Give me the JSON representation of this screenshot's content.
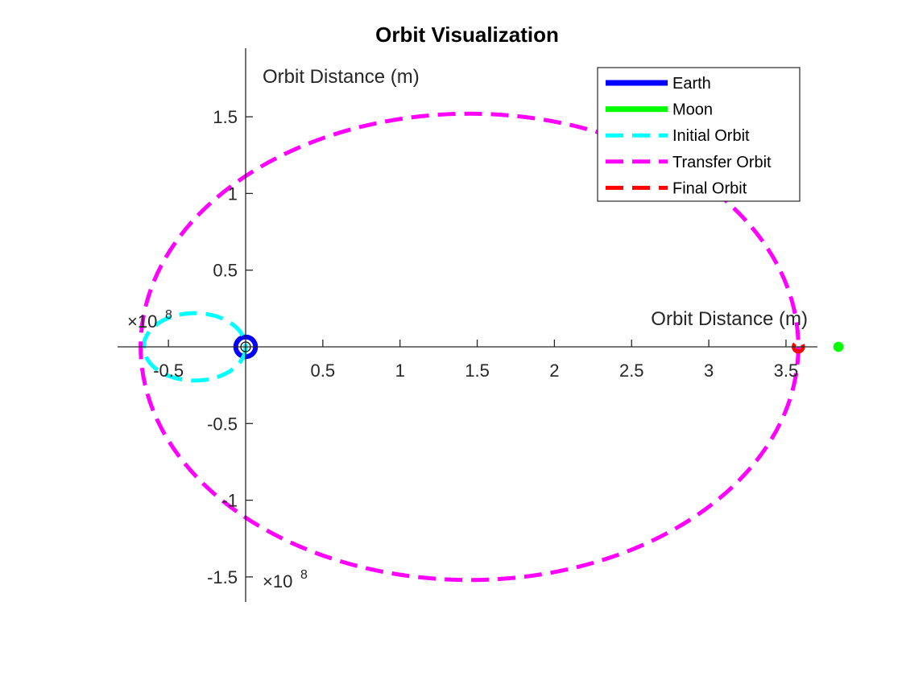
{
  "chart_data": {
    "type": "line",
    "title": "Orbit Visualization",
    "xlabel": "Orbit Distance (m)",
    "ylabel": "Orbit Distance (m)",
    "x_multiplier": "×10",
    "x_multiplier_exp": "8",
    "y_multiplier": "×10",
    "y_multiplier_exp": "8",
    "xlim": [
      -0.85,
      3.7
    ],
    "ylim": [
      -1.65,
      1.95
    ],
    "xticks": [
      -0.5,
      0.5,
      1,
      1.5,
      2,
      2.5,
      3,
      3.5
    ],
    "xtick_labels": [
      "-0.5",
      "0.5",
      "1",
      "1.5",
      "2",
      "2.5",
      "3",
      "3.5"
    ],
    "yticks": [
      -1.5,
      -1,
      -0.5,
      0.5,
      1,
      1.5
    ],
    "ytick_labels": [
      "-1.5",
      "-1",
      "-0.5",
      "0.5",
      "1",
      "1.5"
    ],
    "axes_location": "origin",
    "grid": false,
    "legend_position": "top-right",
    "series": [
      {
        "name": "Earth",
        "style": "solid",
        "color": "#0000ff",
        "center": [
          0,
          0
        ],
        "radius": 0.064
      },
      {
        "name": "Moon",
        "style": "solid",
        "color": "#00ff00",
        "center": [
          3.84,
          0
        ],
        "radius": 0.0174
      },
      {
        "name": "Initial Orbit",
        "style": "dashed",
        "color": "#00ffff",
        "center": [
          -0.33,
          0
        ],
        "semi_major_axis": 0.33,
        "semi_minor_axis": 0.22
      },
      {
        "name": "Transfer Orbit",
        "style": "dashed",
        "color": "#ff00ff",
        "center": [
          1.45,
          0
        ],
        "semi_major_axis": 2.13,
        "semi_minor_axis": 1.52
      },
      {
        "name": "Final Orbit",
        "style": "dashed",
        "color": "#ff0000",
        "center": [
          3.58,
          0
        ],
        "radius": 0.03
      }
    ]
  }
}
